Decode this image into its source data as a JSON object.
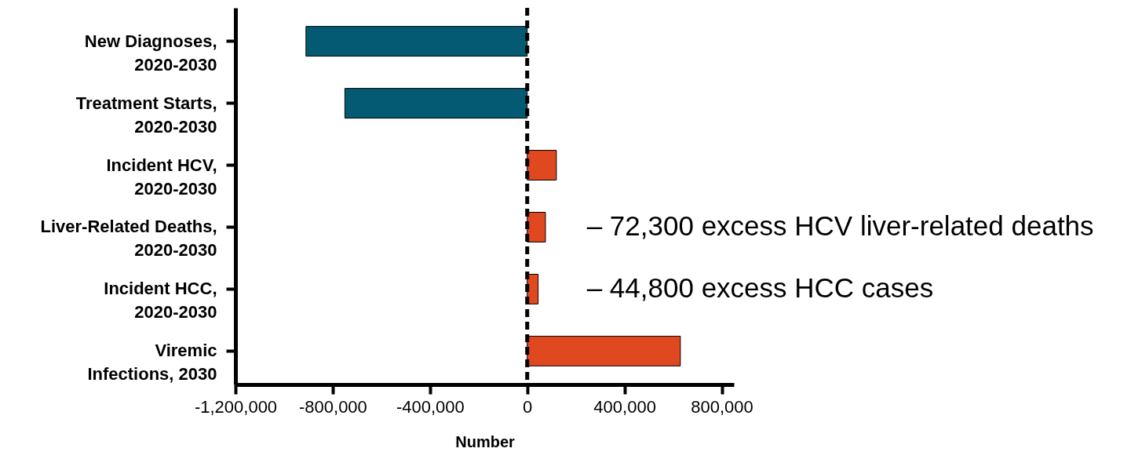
{
  "chart_data": {
    "type": "bar",
    "orientation": "horizontal",
    "xlabel": "Number",
    "categories": [
      "New Diagnoses,\n2020-2030",
      "Treatment Starts,\n2020-2030",
      "Incident HCV,\n2020-2030",
      "Liver-Related Deaths,\n2020-2030",
      "Incident HCC,\n2020-2030",
      "Viremic\nInfections, 2030"
    ],
    "values": [
      -910000,
      -750000,
      120000,
      75000,
      45000,
      630000
    ],
    "colors": [
      "#045a73",
      "#045a73",
      "#e0491f",
      "#e0491f",
      "#e0491f",
      "#e0491f"
    ],
    "xlim": [
      -1200000,
      850000
    ],
    "xticks": [
      {
        "value": -1200000,
        "label": "-1,200,000"
      },
      {
        "value": -800000,
        "label": "-800,000"
      },
      {
        "value": -400000,
        "label": "-400,000"
      },
      0,
      {
        "value": 400000,
        "label": "400,000"
      },
      {
        "value": 800000,
        "label": "800,000"
      }
    ],
    "grid": false,
    "ref_lines": [
      {
        "axis": "x",
        "value": 0,
        "color": "#000000",
        "line_style": "dashed"
      }
    ],
    "annotations": [
      "–  72,300 excess HCV liver-related deaths",
      "–  44,800 excess HCC cases"
    ]
  }
}
